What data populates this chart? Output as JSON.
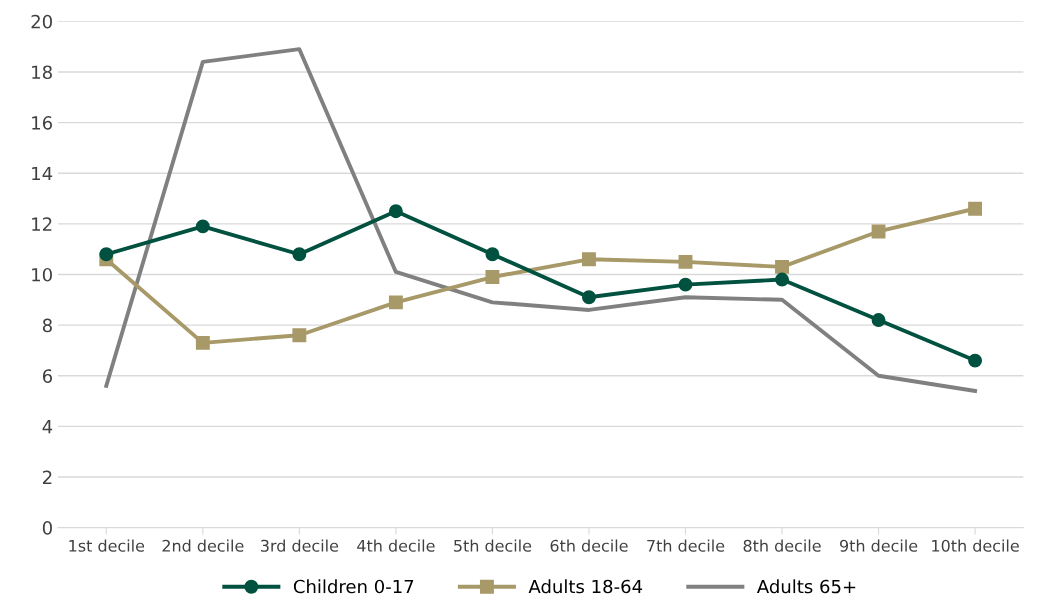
{
  "chart_data": {
    "type": "line",
    "categories": [
      "1st decile",
      "2nd decile",
      "3rd decile",
      "4th decile",
      "5th decile",
      "6th decile",
      "7th decile",
      "8th decile",
      "9th decile",
      "10th decile"
    ],
    "series": [
      {
        "name": "Children 0-17",
        "color": "#00513f",
        "marker": "circle",
        "values": [
          10.8,
          11.9,
          10.8,
          12.5,
          10.8,
          9.1,
          9.6,
          9.8,
          8.2,
          6.6
        ]
      },
      {
        "name": "Adults 18-64",
        "color": "#a89968",
        "marker": "square",
        "values": [
          10.6,
          7.3,
          7.6,
          8.9,
          9.9,
          10.6,
          10.5,
          10.3,
          11.7,
          12.6
        ]
      },
      {
        "name": "Adults 65+",
        "color": "#808080",
        "marker": "none",
        "values": [
          5.6,
          18.4,
          18.9,
          10.1,
          8.9,
          8.6,
          9.1,
          9.0,
          6.0,
          5.4
        ]
      }
    ],
    "ylim": [
      0,
      20
    ],
    "yticks": [
      0,
      2,
      4,
      6,
      8,
      10,
      12,
      14,
      16,
      18,
      20
    ],
    "grid": "y",
    "legend": "bottom",
    "line_style": "solid"
  }
}
